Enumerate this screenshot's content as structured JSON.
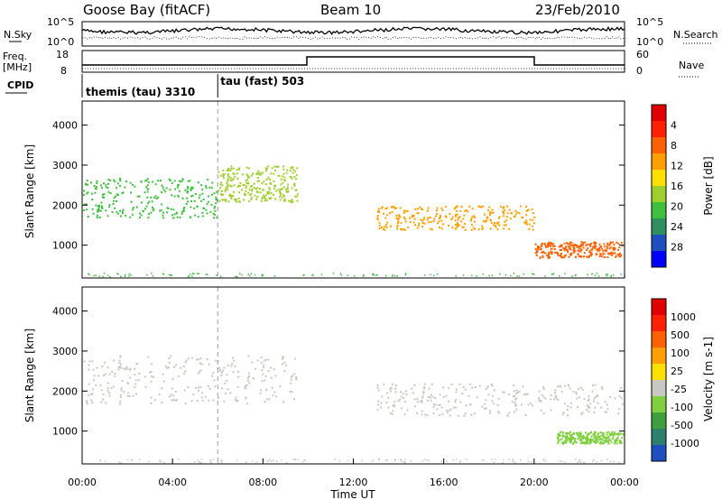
{
  "header": {
    "station": "Goose Bay (fitACF)",
    "beam": "Beam 10",
    "date": "23/Feb/2010"
  },
  "left_labels": {
    "nsky": "N.Sky",
    "freq": "Freq.",
    "mhz": "[MHz]",
    "cpid": "CPID"
  },
  "right_labels": {
    "nsearch": "N.Search",
    "nave": "Nave"
  },
  "noise_axis": {
    "top_left": "10^5",
    "bottom_left": "10^0",
    "top_right": "10^5",
    "bottom_right": "10^0"
  },
  "freq_axis": {
    "top_left": "18",
    "bottom_left": "8",
    "top_right": "60",
    "bottom_right": "0"
  },
  "cpid_segments": [
    {
      "label": "themis (tau) 3310",
      "start_hour": 0
    },
    {
      "label": "tau (fast) 503",
      "start_hour": 6
    }
  ],
  "x_axis": {
    "label": "Time UT",
    "ticks": [
      "00:00",
      "04:00",
      "08:00",
      "12:00",
      "16:00",
      "20:00",
      "00:00"
    ]
  },
  "y_axis": {
    "label": "Slant Range [km]",
    "ticks": [
      "1000",
      "2000",
      "3000",
      "4000"
    ]
  },
  "power_scale": {
    "label": "Power [dB]",
    "ticks": [
      "4",
      "8",
      "12",
      "16",
      "20",
      "24",
      "28"
    ],
    "colors": [
      "#0000ff",
      "#1f4fbf",
      "#2f8f5f",
      "#3fbf3f",
      "#9fcf2f",
      "#ffe000",
      "#ffa000",
      "#ff6000",
      "#ff2000",
      "#e00000"
    ]
  },
  "velocity_scale": {
    "label": "Velocity [m s-1]",
    "ticks": [
      "1000",
      "500",
      "100",
      "25",
      "-25",
      "-100",
      "-500",
      "-1000"
    ],
    "colors": [
      "#1f4fbf",
      "#2f7f6f",
      "#3f9f3f",
      "#7fcf3f",
      "#c8c8c0",
      "#ffe000",
      "#ffa000",
      "#ff6000",
      "#ff2000",
      "#e00000"
    ]
  },
  "chart_data": {
    "type": "heatmap",
    "x_range_hours": [
      0,
      24
    ],
    "y_range_km": [
      180,
      4600
    ],
    "time_marker_hour": 6,
    "power_clusters": [
      {
        "t0": 0.0,
        "t1": 6.0,
        "r0": 1700,
        "r1": 2700,
        "color": "#3fbf3f"
      },
      {
        "t0": 6.0,
        "t1": 9.5,
        "r0": 2100,
        "r1": 3000,
        "color": "#9fcf2f"
      },
      {
        "t0": 13.0,
        "t1": 20.0,
        "r0": 1400,
        "r1": 2000,
        "color": "#ffa000"
      },
      {
        "t0": 20.0,
        "t1": 23.9,
        "r0": 700,
        "r1": 1100,
        "color": "#ff6000"
      }
    ],
    "velocity_clusters": [
      {
        "t0": 0.0,
        "t1": 9.5,
        "r0": 1700,
        "r1": 2900,
        "color": "#c8c8c0"
      },
      {
        "t0": 13.0,
        "t1": 23.9,
        "r0": 1400,
        "r1": 2200,
        "color": "#c8c8c0"
      },
      {
        "t0": 21.0,
        "t1": 23.9,
        "r0": 700,
        "r1": 1000,
        "color": "#7fcf3f"
      }
    ]
  }
}
